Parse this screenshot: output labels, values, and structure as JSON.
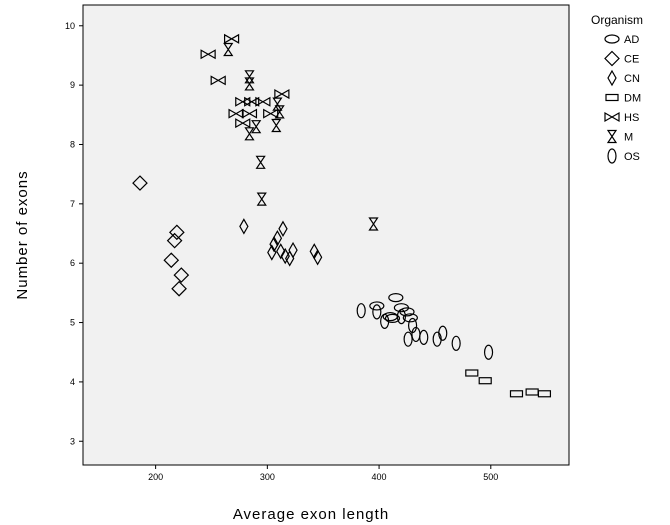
{
  "chart_data": {
    "type": "scatter",
    "title": "",
    "xlabel": "Average  exon  length",
    "ylabel": "Number  of  exons",
    "xlim": [
      135,
      570
    ],
    "ylim": [
      2.6,
      10.35
    ],
    "x_ticks": [
      "200",
      "300",
      "400",
      "500"
    ],
    "x_tick_values": [
      200,
      300,
      400,
      500
    ],
    "y_ticks": [
      "3",
      "4",
      "5",
      "6",
      "7",
      "8",
      "9",
      "10"
    ],
    "y_tick_values": [
      3,
      4,
      5,
      6,
      7,
      8,
      9,
      10
    ],
    "grid": false,
    "plot_background": "#f1f1f1",
    "legend": {
      "title": "Organism",
      "placement": "outside-right-top"
    },
    "series": [
      {
        "name": "AD",
        "marker": "horizontal-ellipse",
        "points": [
          [
            398,
            5.28
          ],
          [
            415,
            5.42
          ],
          [
            410,
            5.1
          ],
          [
            420,
            5.25
          ],
          [
            425,
            5.18
          ],
          [
            412,
            5.07
          ],
          [
            428,
            5.08
          ]
        ]
      },
      {
        "name": "CE",
        "marker": "diamond",
        "points": [
          [
            186,
            7.35
          ],
          [
            219,
            6.52
          ],
          [
            217,
            6.38
          ],
          [
            214,
            6.05
          ],
          [
            223,
            5.8
          ],
          [
            221,
            5.57
          ]
        ]
      },
      {
        "name": "CN",
        "marker": "narrow-diamond",
        "points": [
          [
            279,
            6.62
          ],
          [
            314,
            6.58
          ],
          [
            309,
            6.42
          ],
          [
            306,
            6.32
          ],
          [
            304,
            6.18
          ],
          [
            312,
            6.2
          ],
          [
            316,
            6.12
          ],
          [
            323,
            6.22
          ],
          [
            320,
            6.08
          ],
          [
            342,
            6.2
          ],
          [
            345,
            6.1
          ]
        ]
      },
      {
        "name": "DM",
        "marker": "rectangle",
        "points": [
          [
            483,
            4.15
          ],
          [
            495,
            4.02
          ],
          [
            523,
            3.8
          ],
          [
            537,
            3.83
          ],
          [
            548,
            3.8
          ]
        ]
      },
      {
        "name": "HS",
        "marker": "bowtie",
        "points": [
          [
            247,
            9.52
          ],
          [
            256,
            9.08
          ],
          [
            268,
            9.78
          ],
          [
            278,
            8.72
          ],
          [
            286,
            8.72
          ],
          [
            296,
            8.72
          ],
          [
            313,
            8.85
          ],
          [
            272,
            8.52
          ],
          [
            284,
            8.52
          ],
          [
            303,
            8.52
          ],
          [
            278,
            8.36
          ]
        ]
      },
      {
        "name": "M",
        "marker": "hourglass",
        "points": [
          [
            265,
            9.6
          ],
          [
            284,
            9.14
          ],
          [
            284,
            9.02
          ],
          [
            309,
            8.68
          ],
          [
            311,
            8.55
          ],
          [
            290,
            8.3
          ],
          [
            308,
            8.32
          ],
          [
            284,
            8.18
          ],
          [
            294,
            7.7
          ],
          [
            295,
            7.08
          ],
          [
            395,
            6.66
          ]
        ]
      },
      {
        "name": "OS",
        "marker": "vertical-ellipse",
        "points": [
          [
            384,
            5.2
          ],
          [
            398,
            5.18
          ],
          [
            405,
            5.02
          ],
          [
            420,
            5.1
          ],
          [
            430,
            4.95
          ],
          [
            433,
            4.8
          ],
          [
            440,
            4.75
          ],
          [
            426,
            4.72
          ],
          [
            452,
            4.72
          ],
          [
            457,
            4.82
          ],
          [
            469,
            4.65
          ],
          [
            498,
            4.5
          ]
        ]
      }
    ]
  }
}
